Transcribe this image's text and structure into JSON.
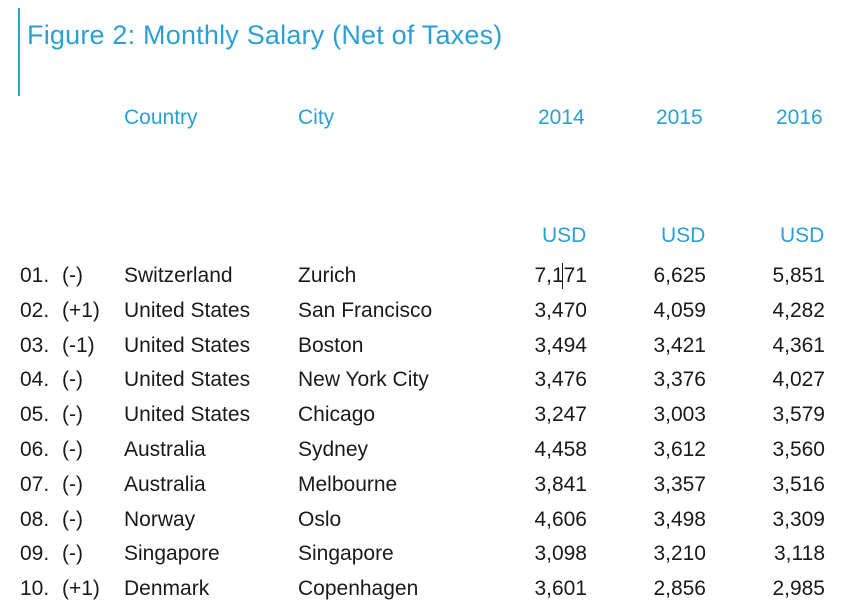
{
  "title": "Figure 2: Monthly Salary (Net of Taxes)",
  "headers": {
    "country": "Country",
    "city": "City",
    "y2014": "2014",
    "y2015": "2015",
    "y2016": "2016"
  },
  "units": {
    "y2014": "USD",
    "y2015": "USD",
    "y2016": "USD"
  },
  "chart_data": {
    "type": "table",
    "title": "Figure 2: Monthly Salary (Net of Taxes)",
    "columns": [
      "Country",
      "City",
      "2014",
      "2015",
      "2016"
    ],
    "unit": "USD",
    "rows": [
      {
        "rank": "01.",
        "change": "(-)",
        "country": "Switzerland",
        "city": "Zurich",
        "v2014": "7,171",
        "v2015": "6,625",
        "v2016": "5,851"
      },
      {
        "rank": "02.",
        "change": "(+1)",
        "country": "United States",
        "city": "San Francisco",
        "v2014": "3,470",
        "v2015": "4,059",
        "v2016": "4,282"
      },
      {
        "rank": "03.",
        "change": "(-1)",
        "country": "United States",
        "city": "Boston",
        "v2014": "3,494",
        "v2015": "3,421",
        "v2016": "4,361"
      },
      {
        "rank": "04.",
        "change": "(-)",
        "country": "United States",
        "city": "New York City",
        "v2014": "3,476",
        "v2015": "3,376",
        "v2016": "4,027"
      },
      {
        "rank": "05.",
        "change": "(-)",
        "country": "United States",
        "city": "Chicago",
        "v2014": "3,247",
        "v2015": "3,003",
        "v2016": "3,579"
      },
      {
        "rank": "06.",
        "change": "(-)",
        "country": "Australia",
        "city": "Sydney",
        "v2014": "4,458",
        "v2015": "3,612",
        "v2016": "3,560"
      },
      {
        "rank": "07.",
        "change": "(-)",
        "country": "Australia",
        "city": "Melbourne",
        "v2014": "3,841",
        "v2015": "3,357",
        "v2016": "3,516"
      },
      {
        "rank": "08.",
        "change": "(-)",
        "country": "Norway",
        "city": "Oslo",
        "v2014": "4,606",
        "v2015": "3,498",
        "v2016": "3,309"
      },
      {
        "rank": "09.",
        "change": "(-)",
        "country": "Singapore",
        "city": "Singapore",
        "v2014": "3,098",
        "v2015": "3,210",
        "v2016": "3,118"
      },
      {
        "rank": "10.",
        "change": "(+1)",
        "country": "Denmark",
        "city": "Copenhagen",
        "v2014": "3,601",
        "v2015": "2,856",
        "v2016": "2,985"
      }
    ]
  }
}
